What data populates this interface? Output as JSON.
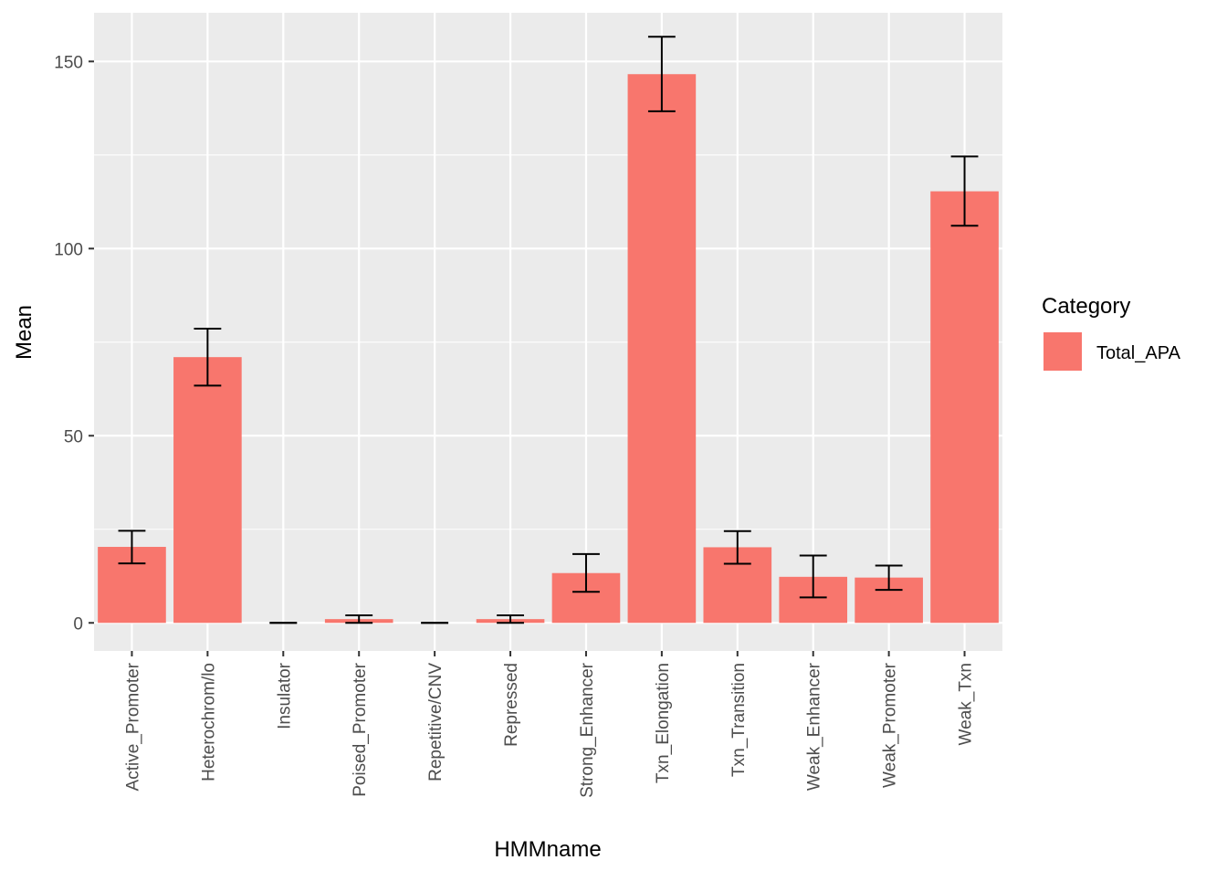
{
  "chart_data": {
    "type": "bar",
    "title": "",
    "xlabel": "HMMname",
    "ylabel": "Mean",
    "ylim": [
      -7.5,
      163
    ],
    "yticks": [
      0,
      50,
      100,
      150
    ],
    "ytick_labels": [
      "0",
      "50",
      "100",
      "150"
    ],
    "grid": true,
    "legend_position": "right",
    "legend_title": "Category",
    "categories": [
      "Active_Promoter",
      "Heterochrom/lo",
      "Insulator",
      "Poised_Promoter",
      "Repetitive/CNV",
      "Repressed",
      "Strong_Enhancer",
      "Txn_Elongation",
      "Txn_Transition",
      "Weak_Enhancer",
      "Weak_Promoter",
      "Weak_Txn"
    ],
    "series": [
      {
        "name": "Total_APA",
        "color": "#F8766D",
        "values": [
          20.3,
          71.0,
          0.0,
          1.0,
          0.0,
          1.0,
          13.3,
          146.6,
          20.2,
          12.3,
          12.1,
          115.3
        ],
        "error_low": [
          15.9,
          63.4,
          0.0,
          0.0,
          0.0,
          0.0,
          8.3,
          136.7,
          15.8,
          6.8,
          8.8,
          106.1
        ],
        "error_high": [
          24.6,
          78.6,
          0.0,
          2.0,
          0.0,
          2.0,
          18.4,
          156.6,
          24.5,
          18.0,
          15.3,
          124.6
        ]
      }
    ]
  }
}
